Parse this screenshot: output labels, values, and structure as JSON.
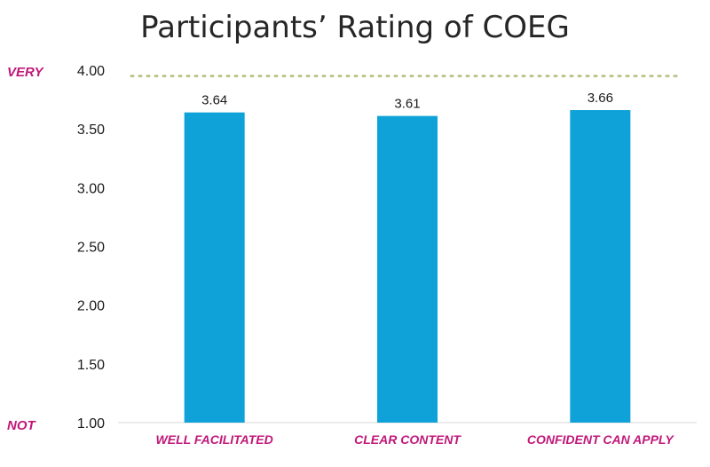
{
  "chart_data": {
    "type": "bar",
    "title": "Participants’ Rating of COEG",
    "categories": [
      "WELL FACILITATED",
      "CLEAR CONTENT",
      "CONFIDENT CAN APPLY"
    ],
    "values": [
      3.64,
      3.61,
      3.66
    ],
    "value_labels": [
      "3.64",
      "3.61",
      "3.66"
    ],
    "ylim": [
      1.0,
      4.0
    ],
    "yticks": [
      "1.00",
      "1.50",
      "2.00",
      "2.50",
      "3.00",
      "3.50",
      "4.00"
    ],
    "scale_labels": {
      "top": "VERY",
      "bottom": "NOT"
    },
    "reference_line": {
      "value": 3.95,
      "style": "dotted"
    },
    "legend": "none",
    "grid": false,
    "colors": {
      "bar": "#0ea2d8",
      "reference": "#bcc48a",
      "accent": "#c0187a"
    }
  }
}
